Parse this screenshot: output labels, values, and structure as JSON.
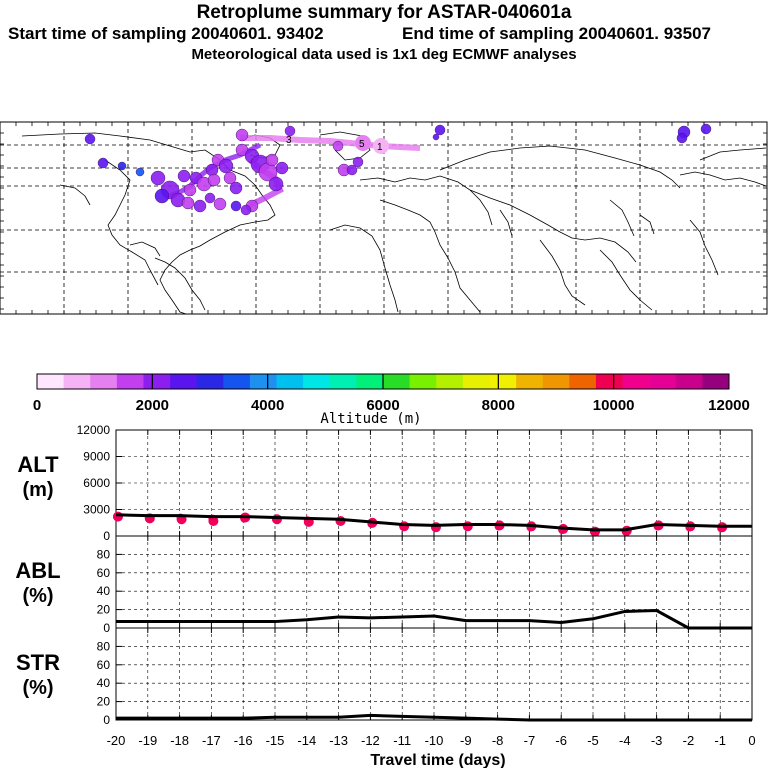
{
  "header": {
    "title": "Retroplume summary for ASTAR-040601a",
    "start_label": "Start time of sampling 20040601. 93402",
    "end_label": "End time of sampling 20040601. 93507",
    "met_label": "Meteorological data used is 1x1 deg ECMWF analyses"
  },
  "colorbar": {
    "title": "Altitude (m)",
    "tick_labels": [
      "0",
      "2000",
      "4000",
      "6000",
      "8000",
      "10000",
      "12000"
    ],
    "colors": [
      "#ffe6ff",
      "#f5b3f5",
      "#e680f0",
      "#c23ff0",
      "#8c1ff0",
      "#5a14f0",
      "#2a28e6",
      "#1455f0",
      "#1e90f0",
      "#00c0f0",
      "#00e6e6",
      "#00f0b4",
      "#00f07a",
      "#28dc28",
      "#78f000",
      "#b4f000",
      "#e6f000",
      "#f0f000",
      "#f0b400",
      "#f09600",
      "#f06400",
      "#f00050",
      "#f0008c",
      "#e60096",
      "#c8008c",
      "#96007e"
    ]
  },
  "chart_data": [
    {
      "type": "line",
      "name": "alt-panel",
      "ylabel": "ALT\n(m)",
      "ylabel_top": "ALT",
      "ylabel_unit": "(m)",
      "ylim": [
        0,
        12000
      ],
      "yticks": [
        "12000",
        "9000",
        "6000",
        "3000",
        "0"
      ],
      "ytick_values": [
        12000,
        9000,
        6000,
        3000,
        0
      ],
      "x": [
        -20,
        -19,
        -18,
        -17,
        -16,
        -15,
        -14,
        -13,
        -12,
        -11,
        -10,
        -9,
        -8,
        -7,
        -6,
        -5,
        -4,
        -3,
        -2,
        -1,
        0
      ],
      "values": [
        2400,
        2300,
        2300,
        2200,
        2200,
        2100,
        2000,
        1900,
        1600,
        1300,
        1200,
        1300,
        1300,
        1200,
        900,
        700,
        700,
        1300,
        1200,
        1100,
        1100
      ],
      "scatter_color": "#f0005a",
      "scatter_values": [
        2200,
        2000,
        1900,
        1700,
        2100,
        1900,
        1600,
        1700,
        1500,
        1100,
        1000,
        1100,
        1200,
        1100,
        800,
        500,
        600,
        1200,
        1100,
        1000
      ]
    },
    {
      "type": "line",
      "name": "abl-panel",
      "ylabel_top": "ABL",
      "ylabel_unit": "(%)",
      "ylim": [
        0,
        100
      ],
      "yticks": [
        "80",
        "60",
        "40",
        "20",
        "0"
      ],
      "ytick_values": [
        80,
        60,
        40,
        20,
        0
      ],
      "x": [
        -20,
        -19,
        -18,
        -17,
        -16,
        -15,
        -14,
        -13,
        -12,
        -11,
        -10,
        -9,
        -8,
        -7,
        -6,
        -5,
        -4,
        -3,
        -2,
        -1,
        0
      ],
      "values": [
        7,
        7,
        7,
        7,
        7,
        7,
        9,
        12,
        11,
        12,
        13,
        8,
        8,
        8,
        6,
        10,
        18,
        19,
        0,
        0,
        0
      ]
    },
    {
      "type": "line",
      "name": "str-panel",
      "ylabel_top": "STR",
      "ylabel_unit": "(%)",
      "ylim": [
        0,
        100
      ],
      "yticks": [
        "80",
        "60",
        "40",
        "20",
        "0"
      ],
      "ytick_values": [
        80,
        60,
        40,
        20,
        0
      ],
      "x": [
        -20,
        -19,
        -18,
        -17,
        -16,
        -15,
        -14,
        -13,
        -12,
        -11,
        -10,
        -9,
        -8,
        -7,
        -6,
        -5,
        -4,
        -3,
        -2,
        -1,
        0
      ],
      "values": [
        2,
        2,
        2,
        2,
        2,
        3,
        3,
        3,
        5,
        4,
        3,
        2,
        1,
        0,
        0,
        0,
        0,
        0,
        0,
        0,
        0
      ],
      "xlabel": "Travel time (days)",
      "xtick_labels": [
        "-20",
        "-19",
        "-18",
        "-17",
        "-16",
        "-15",
        "-14",
        "-13",
        "-12",
        "-11",
        "-10",
        "-9",
        "-8",
        "-7",
        "-6",
        "-5",
        "-4",
        "-3",
        "-2",
        "-1",
        "0"
      ]
    }
  ],
  "map": {
    "labels": [
      "5",
      "3",
      "1"
    ],
    "track_color": "#d94fe6"
  }
}
